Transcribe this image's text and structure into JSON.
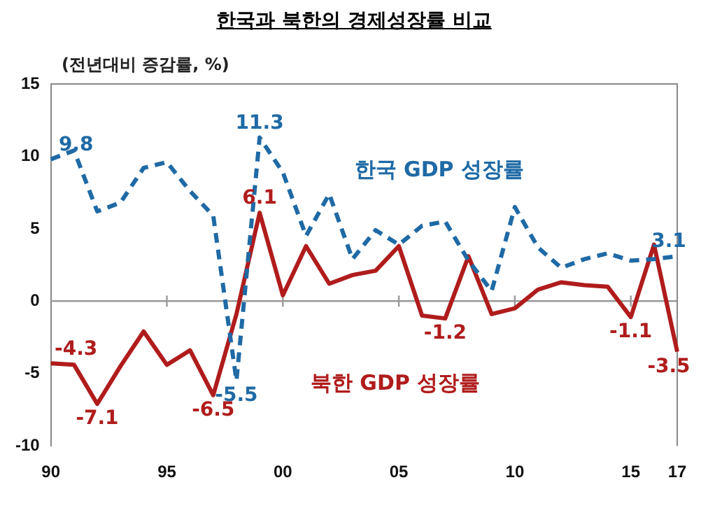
{
  "chart_data": {
    "type": "line",
    "title": "한국과 북한의 경제성장률 비교",
    "ylabel": "(전년대비 증감률, %)",
    "categories": [
      "90",
      null,
      null,
      null,
      null,
      "95",
      null,
      null,
      null,
      null,
      "00",
      null,
      null,
      null,
      null,
      "05",
      null,
      null,
      null,
      null,
      "10",
      null,
      null,
      null,
      null,
      "15",
      null,
      "17"
    ],
    "series": [
      {
        "name": "한국 GDP 성장률",
        "color": "#1f6aa5",
        "line_style": "dashed",
        "values": [
          9.8,
          10.4,
          6.2,
          6.8,
          9.2,
          9.6,
          7.6,
          5.9,
          -5.5,
          11.3,
          8.9,
          4.5,
          7.4,
          2.9,
          4.9,
          3.9,
          5.2,
          5.5,
          2.8,
          0.7,
          6.5,
          3.7,
          2.3,
          2.9,
          3.3,
          2.8,
          2.9,
          3.1
        ],
        "value_labels": [
          "9.8",
          null,
          null,
          null,
          null,
          null,
          null,
          null,
          "-5.5",
          "11.3",
          null,
          null,
          null,
          null,
          null,
          null,
          null,
          null,
          null,
          null,
          null,
          null,
          null,
          null,
          null,
          null,
          null,
          "3.1"
        ]
      },
      {
        "name": "북한 GDP 성장률",
        "color": "#b01c1c",
        "line_style": "solid",
        "values": [
          -4.3,
          -4.4,
          -7.1,
          -4.5,
          -2.1,
          -4.4,
          -3.4,
          -6.5,
          -0.9,
          6.1,
          0.4,
          3.8,
          1.2,
          1.8,
          2.1,
          3.8,
          -1.0,
          -1.2,
          3.1,
          -0.9,
          -0.5,
          0.8,
          1.3,
          1.1,
          1.0,
          -1.1,
          3.9,
          -3.5
        ],
        "value_labels": [
          "-4.3",
          null,
          "-7.1",
          null,
          null,
          null,
          null,
          "-6.5",
          null,
          "6.1",
          null,
          null,
          null,
          null,
          null,
          null,
          null,
          "-1.2",
          null,
          null,
          null,
          null,
          null,
          null,
          null,
          "-1.1",
          null,
          "-3.5"
        ]
      }
    ],
    "ylim": [
      -10,
      15
    ],
    "yticks": [
      -10,
      -5,
      0,
      5,
      10,
      15
    ],
    "grid": false,
    "legend": false,
    "marker": "none",
    "ref_lines": [
      {
        "axis": "y",
        "value": 0,
        "color": "#999999"
      }
    ]
  }
}
